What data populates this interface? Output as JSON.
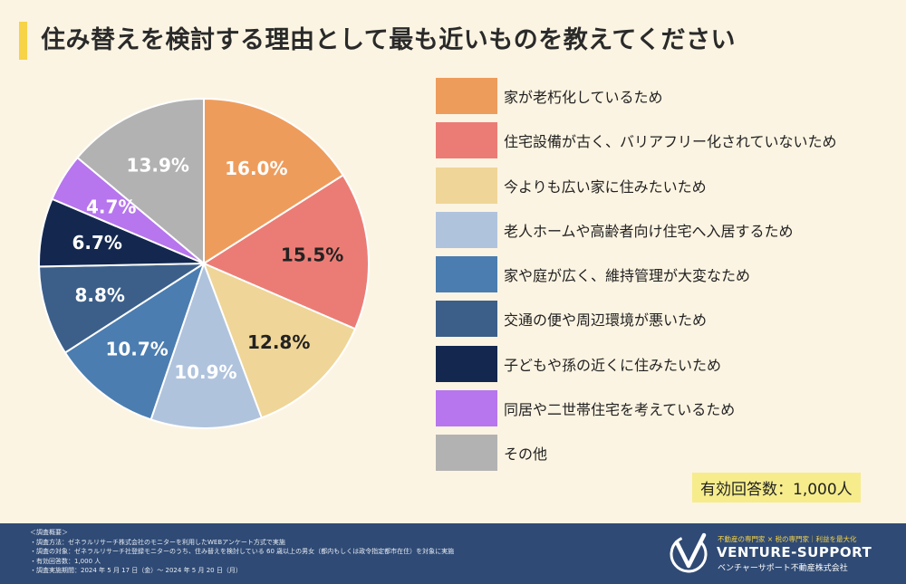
{
  "title": "住み替えを検討する理由として最も近いものを教えてください",
  "chart_data": {
    "type": "pie",
    "title": "住み替えを検討する理由として最も近いものを教えてください",
    "unit": "%",
    "categories": [
      "家が老朽化しているため",
      "住宅設備が古く、バリアフリー化されていないため",
      "今よりも広い家に住みたいため",
      "老人ホームや高齢者向け住宅へ入居するため",
      "家や庭が広く、維持管理が大変なため",
      "交通の便や周辺環境が悪いため",
      "子どもや孫の近くに住みたいため",
      "同居や二世帯住宅を考えているため",
      "その他"
    ],
    "values": [
      16.0,
      15.5,
      12.8,
      10.9,
      10.7,
      8.8,
      6.7,
      4.7,
      13.9
    ],
    "value_labels": [
      "16.0%",
      "15.5%",
      "12.8%",
      "10.9%",
      "10.7%",
      "8.8%",
      "6.7%",
      "4.7%",
      "13.9%"
    ],
    "colors": [
      "#ee9c5c",
      "#eb7c75",
      "#efd597",
      "#b0c3dd",
      "#4b7db0",
      "#3b5f89",
      "#14284f",
      "#b775ee",
      "#b2b2b2"
    ],
    "label_colors": [
      "#ffffff",
      "#222222",
      "#222222",
      "#ffffff",
      "#ffffff",
      "#ffffff",
      "#ffffff",
      "#ffffff",
      "#ffffff"
    ],
    "legend_position": "right",
    "start": "top, clockwise"
  },
  "respondents": "有効回答数：1,000人",
  "footer": {
    "notes": [
      "＜調査概要＞",
      "・調査方法：ゼネラルリサーチ株式会社のモニターを利用したWEBアンケート方式で実施",
      "・調査の対象：ゼネラルリサーチ社登録モニターのうち、住み替えを検討している 60 歳以上の男女（都内もしくは政令指定都市在住）を対象に実施",
      "・有効回答数：1,000 人",
      "・調査実施期間：2024 年 5 月 17 日（金）～ 2024 年 5 月 20 日（月）"
    ],
    "tagline": "不動産の専門家 × 税の専門家｜利益を最大化",
    "brand": "VENTURE-SUPPORT",
    "company": "ベンチャーサポート不動産株式会社"
  }
}
